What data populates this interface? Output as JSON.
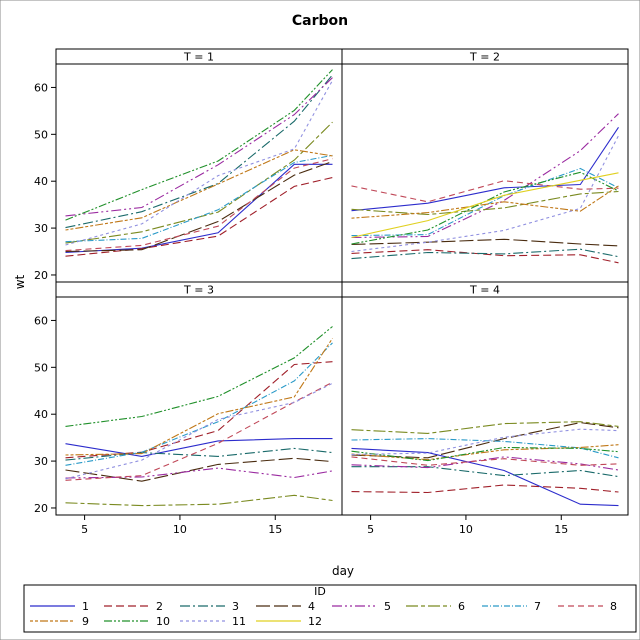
{
  "chart_data": {
    "type": "line",
    "title": "Carbon",
    "xlabel": "day",
    "ylabel": "wt",
    "xlim": [
      3.5,
      18.5
    ],
    "ylim": [
      18.5,
      65
    ],
    "x_ticks": [
      5,
      10,
      15
    ],
    "y_ticks": [
      20,
      30,
      40,
      50,
      60
    ],
    "grid": false,
    "legend_title": "ID",
    "legend_position": "bottom",
    "ids": [
      {
        "id": "1",
        "color": "#2c2ccc",
        "dash": ""
      },
      {
        "id": "2",
        "color": "#a0202a",
        "dash": "8,4"
      },
      {
        "id": "3",
        "color": "#1a6a6a",
        "dash": "10,3,2,3"
      },
      {
        "id": "4",
        "color": "#4a2c10",
        "dash": "14,4"
      },
      {
        "id": "5",
        "color": "#9a2aa0",
        "dash": "10,3,2,3,2,3"
      },
      {
        "id": "6",
        "color": "#7a8a20",
        "dash": "12,3,4,3"
      },
      {
        "id": "7",
        "color": "#2a9ac8",
        "dash": "6,2,1,2"
      },
      {
        "id": "8",
        "color": "#c04858",
        "dash": "6,4"
      },
      {
        "id": "9",
        "color": "#c07818",
        "dash": "3,2,3,2,8,2"
      },
      {
        "id": "10",
        "color": "#20902a",
        "dash": "8,2,2,2,2,2"
      },
      {
        "id": "11",
        "color": "#9090e0",
        "dash": "3,3"
      },
      {
        "id": "12",
        "color": "#e0d020",
        "dash": ""
      }
    ],
    "panels": [
      {
        "label": "T = 1",
        "x": [
          4,
          8,
          12,
          16,
          18
        ],
        "series": [
          {
            "id": "1",
            "values": [
              24.8,
              25.7,
              29.0,
              43.6,
              43.6
            ]
          },
          {
            "id": "2",
            "values": [
              24.0,
              25.6,
              28.3,
              38.9,
              40.8
            ]
          },
          {
            "id": "3",
            "values": [
              30.1,
              33.5,
              39.5,
              52.8,
              62.7
            ]
          },
          {
            "id": "4",
            "values": [
              25.0,
              25.4,
              31.4,
              41.3,
              44.2
            ]
          },
          {
            "id": "5",
            "values": [
              32.6,
              34.4,
              43.5,
              54.2,
              62.1
            ]
          },
          {
            "id": "6",
            "values": [
              26.8,
              29.2,
              33.4,
              44.5,
              52.6
            ]
          },
          {
            "id": "7",
            "values": [
              27.1,
              27.8,
              33.9,
              44.0,
              45.5
            ]
          },
          {
            "id": "8",
            "values": [
              25.2,
              26.3,
              30.4,
              42.8,
              44.8
            ]
          },
          {
            "id": "9",
            "values": [
              29.6,
              32.2,
              39.4,
              46.7,
              45.4
            ]
          },
          {
            "id": "10",
            "values": [
              31.7,
              38.2,
              44.3,
              55.1,
              63.8
            ]
          },
          {
            "id": "11",
            "values": [
              26.4,
              30.9,
              41.2,
              46.9,
              61.5
            ]
          }
        ]
      },
      {
        "label": "T = 2",
        "x": [
          4,
          8,
          12,
          16,
          18
        ],
        "series": [
          {
            "id": "1",
            "values": [
              33.7,
              35.3,
              38.6,
              39.3,
              51.5
            ]
          },
          {
            "id": "2",
            "values": [
              24.6,
              25.4,
              24.1,
              24.3,
              22.6
            ]
          },
          {
            "id": "3",
            "values": [
              23.5,
              24.8,
              24.5,
              25.5,
              23.9
            ]
          },
          {
            "id": "4",
            "values": [
              26.5,
              27.0,
              27.6,
              26.6,
              26.2
            ]
          },
          {
            "id": "5",
            "values": [
              28.0,
              28.2,
              35.9,
              46.5,
              54.4
            ]
          },
          {
            "id": "6",
            "values": [
              34.0,
              32.9,
              34.3,
              37.3,
              37.8
            ]
          },
          {
            "id": "7",
            "values": [
              28.4,
              28.6,
              36.9,
              42.7,
              38.6
            ]
          },
          {
            "id": "8",
            "values": [
              39.0,
              35.6,
              40.1,
              38.3,
              38.5
            ]
          },
          {
            "id": "9",
            "values": [
              32.1,
              33.3,
              35.6,
              33.6,
              39.0
            ]
          },
          {
            "id": "10",
            "values": [
              26.6,
              29.6,
              37.7,
              41.9,
              37.9
            ]
          },
          {
            "id": "11",
            "values": [
              25.0,
              27.0,
              29.5,
              34.2,
              49.7
            ]
          },
          {
            "id": "12",
            "values": [
              28.0,
              31.6,
              37.0,
              40.2,
              41.8
            ]
          }
        ]
      },
      {
        "label": "T = 3",
        "x": [
          4,
          8,
          12,
          16,
          18
        ],
        "series": [
          {
            "id": "1",
            "values": [
              33.7,
              31.0,
              34.3,
              34.8,
              34.8
            ]
          },
          {
            "id": "2",
            "values": [
              30.7,
              31.9,
              36.5,
              50.6,
              51.2
            ]
          },
          {
            "id": "3",
            "values": [
              30.2,
              31.8,
              31.0,
              32.7,
              31.8
            ]
          },
          {
            "id": "4",
            "values": [
              28.1,
              25.7,
              29.3,
              30.6,
              29.9
            ]
          },
          {
            "id": "5",
            "values": [
              26.4,
              26.6,
              28.5,
              26.5,
              27.9
            ]
          },
          {
            "id": "6",
            "values": [
              21.1,
              20.5,
              20.8,
              22.7,
              21.6
            ]
          },
          {
            "id": "7",
            "values": [
              29.1,
              31.9,
              38.4,
              47.1,
              55.2
            ]
          },
          {
            "id": "8",
            "values": [
              25.9,
              26.9,
              33.8,
              42.6,
              46.8
            ]
          },
          {
            "id": "9",
            "values": [
              31.3,
              31.6,
              40.1,
              43.7,
              56.2
            ]
          },
          {
            "id": "10",
            "values": [
              37.4,
              39.5,
              43.8,
              52.0,
              58.7
            ]
          },
          {
            "id": "11",
            "values": [
              26.2,
              30.2,
              38.9,
              42.5,
              46.6
            ]
          }
        ]
      },
      {
        "label": "T = 4",
        "x": [
          4,
          8,
          12,
          16,
          18
        ],
        "series": [
          {
            "id": "1",
            "values": [
              32.7,
              31.8,
              28.0,
              20.8,
              20.5
            ]
          },
          {
            "id": "2",
            "values": [
              23.5,
              23.3,
              24.9,
              24.2,
              23.4
            ]
          },
          {
            "id": "3",
            "values": [
              28.8,
              28.8,
              26.9,
              28.0,
              26.7
            ]
          },
          {
            "id": "4",
            "values": [
              31.3,
              30.7,
              34.8,
              38.2,
              37.1
            ]
          },
          {
            "id": "5",
            "values": [
              29.2,
              28.6,
              30.9,
              29.4,
              28.1
            ]
          },
          {
            "id": "6",
            "values": [
              36.7,
              35.9,
              38.0,
              38.4,
              37.4
            ]
          },
          {
            "id": "7",
            "values": [
              34.5,
              34.8,
              34.2,
              32.8,
              30.7
            ]
          },
          {
            "id": "8",
            "values": [
              30.9,
              29.1,
              30.5,
              29.1,
              29.4
            ]
          },
          {
            "id": "9",
            "values": [
              31.5,
              30.3,
              32.4,
              32.9,
              33.5
            ]
          },
          {
            "id": "10",
            "values": [
              32.1,
              30.1,
              32.9,
              32.7,
              32.0
            ]
          },
          {
            "id": "11",
            "values": [
              31.4,
              31.7,
              35.1,
              36.8,
              36.5
            ]
          }
        ]
      }
    ]
  }
}
